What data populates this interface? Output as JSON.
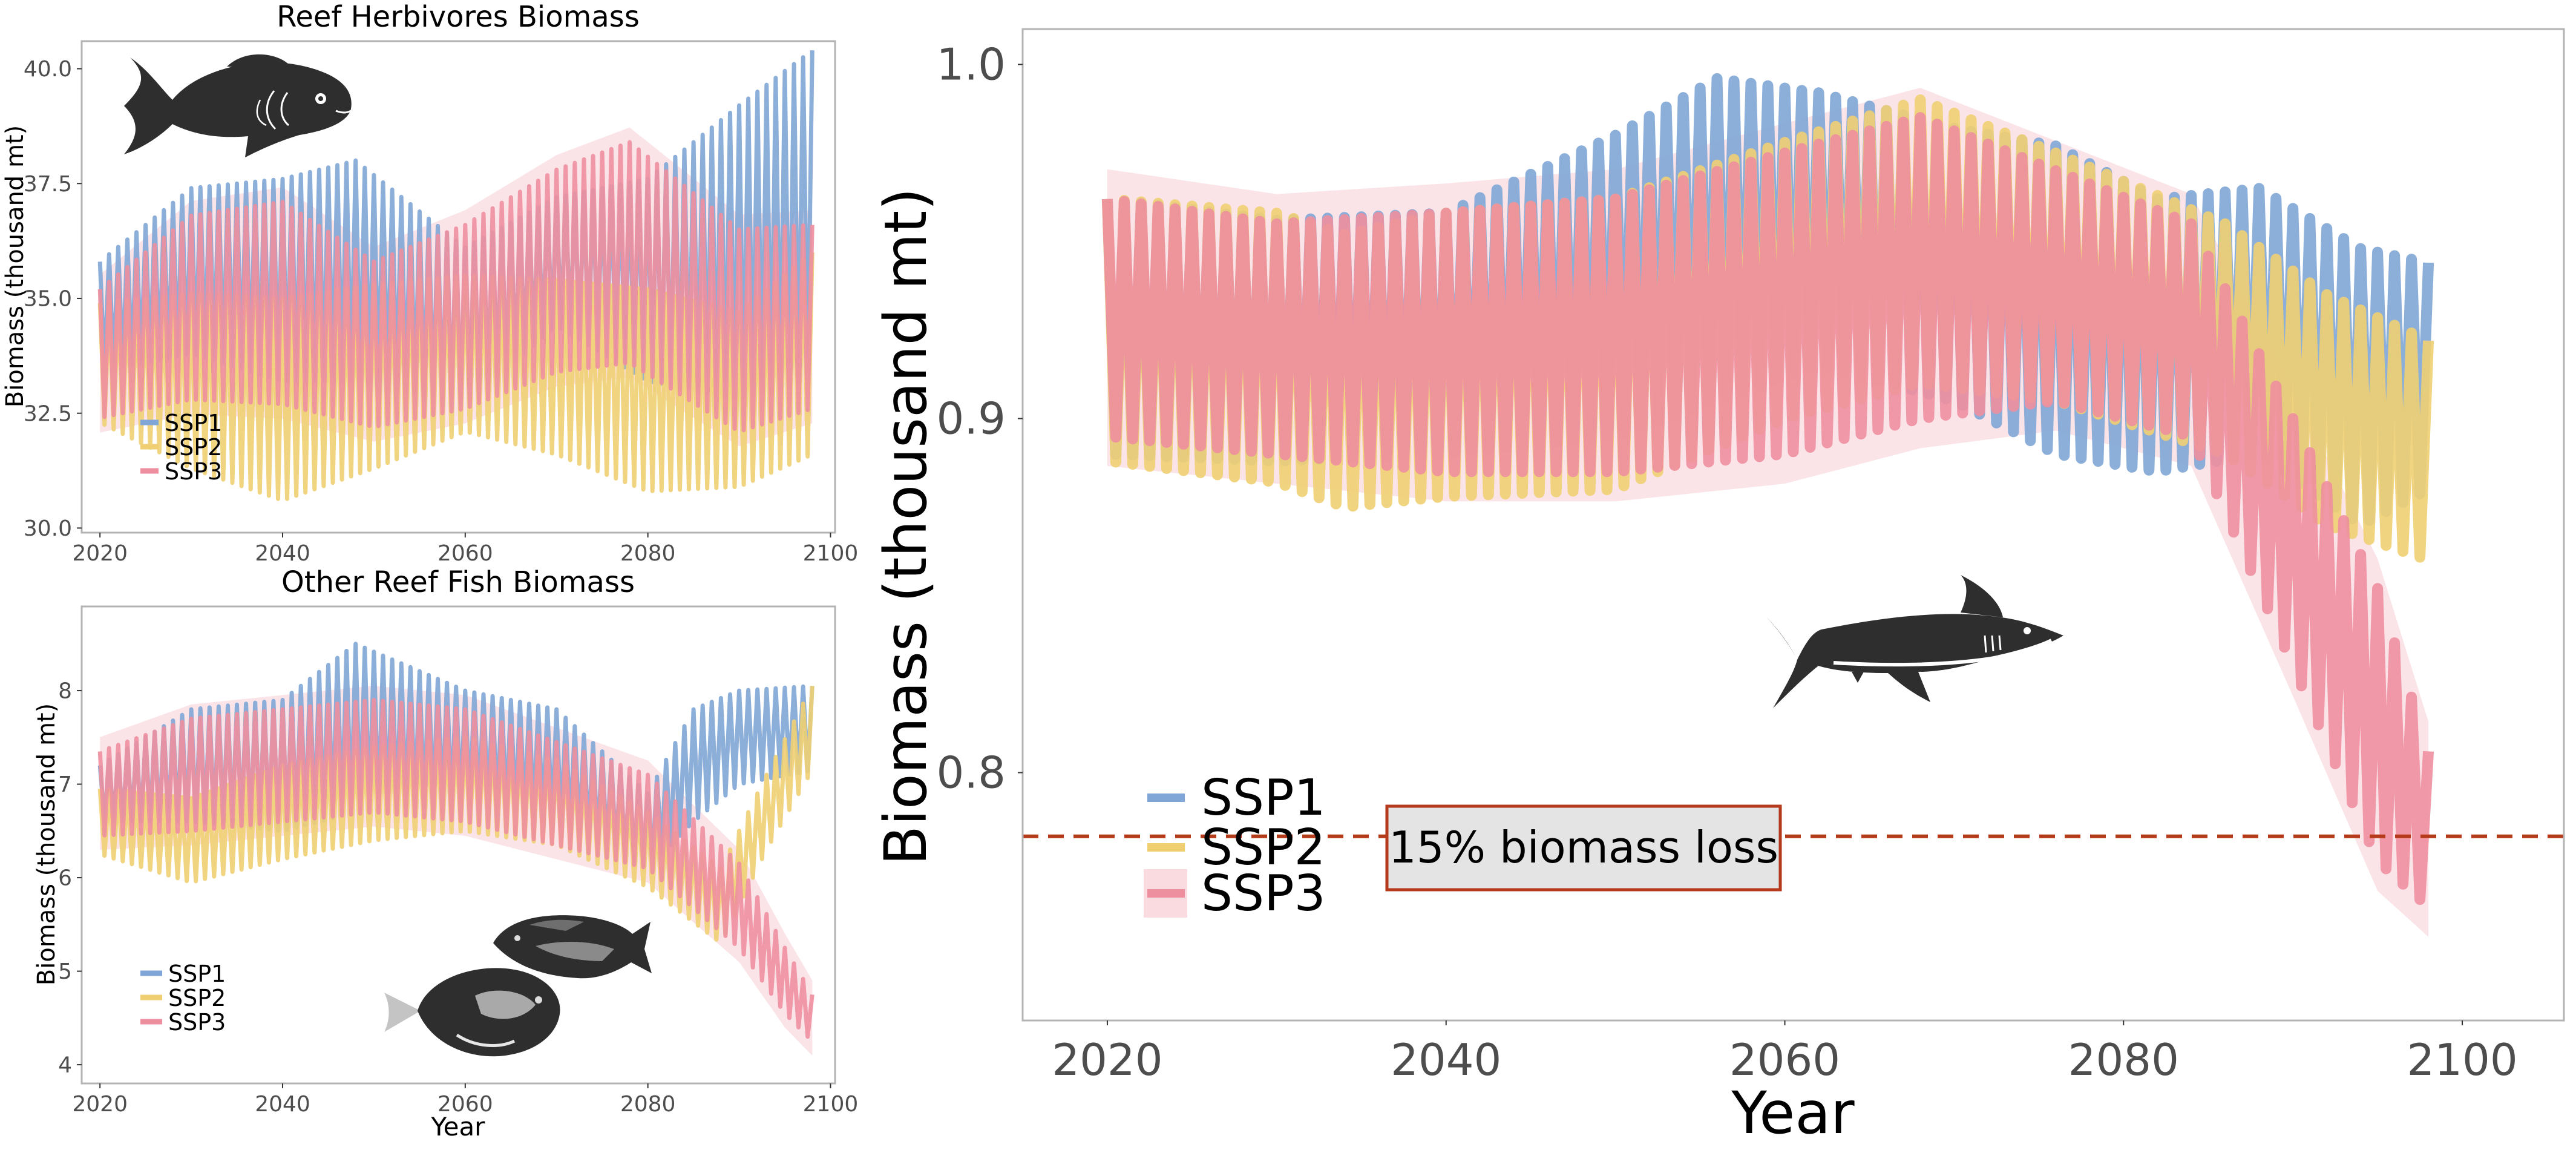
{
  "colors": {
    "SSP1": "#7fa6d6",
    "SSP2": "#f0cf72",
    "SSP3": "#ee8fa0",
    "ssp3_ribbon": "#f6c3cc",
    "threshold": "#b5391b",
    "panel_border": "#b3b3b3",
    "annotation_fill": "#e4e4e4",
    "icon_fill": "#2e2e2e"
  },
  "chart_data": [
    {
      "id": "herbivores",
      "type": "line",
      "title": "Reef Herbivores Biomass",
      "xlabel": "",
      "ylabel": "Biomass (thousand mt)",
      "xlim": [
        2018,
        2100.5
      ],
      "ylim": [
        29.9,
        40.6
      ],
      "xticks": [
        2020,
        2040,
        2060,
        2080,
        2100
      ],
      "yticks": [
        30.0,
        32.5,
        35.0,
        37.5,
        40.0
      ],
      "ytick_labels": [
        "30.0",
        "32.5",
        "35.0",
        "37.5",
        "40.0"
      ],
      "x_start": 2020,
      "x_end": 2098,
      "seasonal_cycle_years": 1,
      "legend": {
        "position": "bottom-left",
        "entries": [
          "SSP1",
          "SSP2",
          "SSP3"
        ]
      },
      "icon": "reef-herbivore-fish-icon",
      "series": [
        {
          "name": "SSP1",
          "years": [
            2020,
            2030,
            2040,
            2048,
            2060,
            2070,
            2080,
            2090,
            2098
          ],
          "mean": [
            34.6,
            35.6,
            35.4,
            35.6,
            34.4,
            35.8,
            35.4,
            36.0,
            36.8
          ],
          "amplitude": [
            1.2,
            1.8,
            2.2,
            2.4,
            1.7,
            1.4,
            2.2,
            3.2,
            3.6
          ]
        },
        {
          "name": "SSP2",
          "years": [
            2020,
            2030,
            2040,
            2050,
            2060,
            2070,
            2080,
            2090,
            2098
          ],
          "mean": [
            33.6,
            33.2,
            32.8,
            33.3,
            33.8,
            33.5,
            33.0,
            32.8,
            33.8
          ],
          "amplitude": [
            1.3,
            1.9,
            2.2,
            2.0,
            1.7,
            1.9,
            2.2,
            1.9,
            2.2
          ]
        },
        {
          "name": "SSP3",
          "years": [
            2020,
            2030,
            2040,
            2050,
            2060,
            2070,
            2078,
            2090,
            2098
          ],
          "mean": [
            33.8,
            34.8,
            34.9,
            34.0,
            34.6,
            35.6,
            36.0,
            34.3,
            34.6
          ],
          "amplitude": [
            1.4,
            2.0,
            2.2,
            1.8,
            2.0,
            2.2,
            2.4,
            2.2,
            2.0
          ]
        }
      ]
    },
    {
      "id": "other_reef_fish",
      "type": "line",
      "title": "Other Reef Fish Biomass",
      "xlabel": "Year",
      "ylabel": "Biomass (thousand mt)",
      "xlim": [
        2018,
        2100.5
      ],
      "ylim": [
        3.8,
        8.9
      ],
      "xticks": [
        2020,
        2040,
        2060,
        2080,
        2100
      ],
      "yticks": [
        4,
        5,
        6,
        7,
        8
      ],
      "ytick_labels": [
        "4",
        "5",
        "6",
        "7",
        "8"
      ],
      "x_start": 2020,
      "x_end": 2098,
      "seasonal_cycle_years": 1,
      "legend": {
        "position": "bottom-left",
        "entries": [
          "SSP1",
          "SSP2",
          "SSP3"
        ]
      },
      "icons": [
        "triggerfish-icon",
        "surgeonfish-icon"
      ],
      "series": [
        {
          "name": "SSP1",
          "years": [
            2020,
            2030,
            2040,
            2048,
            2060,
            2070,
            2080,
            2085,
            2090,
            2098
          ],
          "mean": [
            6.9,
            7.2,
            7.2,
            7.6,
            7.4,
            7.2,
            6.5,
            7.2,
            7.5,
            7.6
          ],
          "amplitude": [
            0.3,
            0.6,
            0.7,
            0.9,
            0.6,
            0.6,
            0.4,
            0.6,
            0.5,
            0.45
          ]
        },
        {
          "name": "SSP2",
          "years": [
            2020,
            2030,
            2040,
            2050,
            2060,
            2070,
            2080,
            2088,
            2093,
            2098
          ],
          "mean": [
            6.6,
            6.4,
            6.7,
            6.9,
            7.0,
            6.8,
            6.3,
            5.7,
            6.7,
            7.6
          ],
          "amplitude": [
            0.35,
            0.45,
            0.5,
            0.5,
            0.5,
            0.45,
            0.4,
            0.4,
            0.4,
            0.45
          ]
        },
        {
          "name": "SSP3",
          "years": [
            2020,
            2030,
            2040,
            2050,
            2060,
            2070,
            2080,
            2090,
            2095,
            2098
          ],
          "mean": [
            6.9,
            7.1,
            7.2,
            7.3,
            7.2,
            6.9,
            6.6,
            5.7,
            4.9,
            4.5
          ],
          "amplitude": [
            0.45,
            0.6,
            0.6,
            0.6,
            0.6,
            0.55,
            0.5,
            0.45,
            0.35,
            0.25
          ]
        }
      ]
    },
    {
      "id": "sharks",
      "type": "line",
      "title": "",
      "xlabel": "Year",
      "ylabel": "Biomass (thousand mt)",
      "xlim": [
        2015,
        2106
      ],
      "ylim": [
        0.73,
        1.01
      ],
      "xticks": [
        2020,
        2040,
        2060,
        2080,
        2100
      ],
      "yticks": [
        0.8,
        0.9,
        1.0
      ],
      "ytick_labels": [
        "0.8",
        "0.9",
        "1.0"
      ],
      "x_start": 2020,
      "x_end": 2098,
      "seasonal_cycle_years": 1,
      "threshold": {
        "value": 0.782,
        "style": "dashed",
        "label": "15% biomass loss"
      },
      "legend": {
        "position": "bottom-left",
        "entries": [
          "SSP1",
          "SSP2",
          "SSP3"
        ]
      },
      "icon": "shark-icon",
      "series": [
        {
          "name": "SSP1",
          "years": [
            2020,
            2030,
            2040,
            2050,
            2056,
            2062,
            2070,
            2076,
            2082,
            2088,
            2094,
            2098
          ],
          "max": [
            0.962,
            0.956,
            0.958,
            0.98,
            0.996,
            0.992,
            0.982,
            0.977,
            0.962,
            0.965,
            0.948,
            0.944
          ],
          "min": [
            0.89,
            0.888,
            0.89,
            0.895,
            0.905,
            0.915,
            0.905,
            0.89,
            0.885,
            0.89,
            0.87,
            0.88
          ]
        },
        {
          "name": "SSP2",
          "years": [
            2020,
            2030,
            2034,
            2040,
            2050,
            2060,
            2068,
            2076,
            2086,
            2092,
            2098
          ],
          "max": [
            0.962,
            0.958,
            0.952,
            0.958,
            0.962,
            0.978,
            0.99,
            0.975,
            0.955,
            0.935,
            0.922
          ],
          "min": [
            0.888,
            0.882,
            0.875,
            0.878,
            0.88,
            0.9,
            0.91,
            0.905,
            0.89,
            0.87,
            0.86
          ]
        },
        {
          "name": "SSP3",
          "years": [
            2020,
            2030,
            2040,
            2050,
            2060,
            2068,
            2076,
            2084,
            2090,
            2095,
            2098
          ],
          "max": [
            0.962,
            0.955,
            0.958,
            0.962,
            0.975,
            0.985,
            0.97,
            0.955,
            0.9,
            0.852,
            0.806
          ],
          "min": [
            0.895,
            0.89,
            0.885,
            0.885,
            0.89,
            0.9,
            0.905,
            0.895,
            0.83,
            0.775,
            0.762
          ]
        }
      ]
    }
  ]
}
